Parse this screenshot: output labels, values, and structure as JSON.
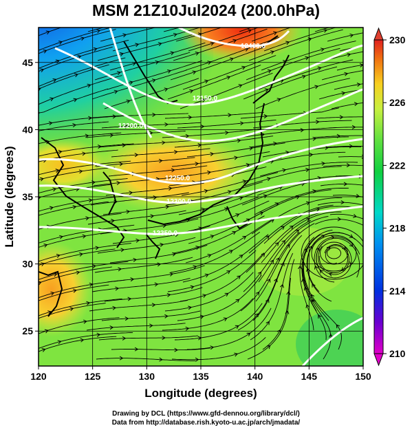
{
  "title": "MSM 21Z10Jul2024 (200.0hPa)",
  "chart_data": {
    "type": "heatmap",
    "variable_levels": "temperature shading with streamlines and white geopotential contours",
    "xlabel": "Longitude (degrees)",
    "ylabel": "Latitude  (degrees)",
    "xlim": [
      120,
      150
    ],
    "ylim": [
      22.4,
      47.6
    ],
    "xticks": [
      "120",
      "125",
      "130",
      "135",
      "140",
      "145",
      "150"
    ],
    "yticks": [
      "25",
      "30",
      "35",
      "40",
      "45"
    ],
    "grid": true,
    "colorbar": {
      "min": 210,
      "max": 230,
      "ticks": [
        "210",
        "214",
        "218",
        "222",
        "226",
        "230"
      ],
      "colors": [
        "#e000c8",
        "#6a00d0",
        "#0030e0",
        "#0090f0",
        "#00d8c8",
        "#10d040",
        "#60e040",
        "#c8f040",
        "#f8d020",
        "#f07010",
        "#e02020"
      ]
    },
    "contours": [
      {
        "label": "12150.0"
      },
      {
        "label": "12200.0"
      },
      {
        "label": "12250.0"
      },
      {
        "label": "12300.0"
      },
      {
        "label": "12350.0"
      },
      {
        "label": "12400.0"
      }
    ],
    "contour_labels_visible": [
      "12150.0",
      "12200.0",
      "12250.0",
      "12300.0",
      "12350.0",
      "12400.0"
    ]
  },
  "credits": {
    "line1": "Drawing by DCL (https://www.gfd-dennou.org/library/dcl/)",
    "line2": "Data from http://database.rish.kyoto-u.ac.jp/arch/jmadata/"
  }
}
